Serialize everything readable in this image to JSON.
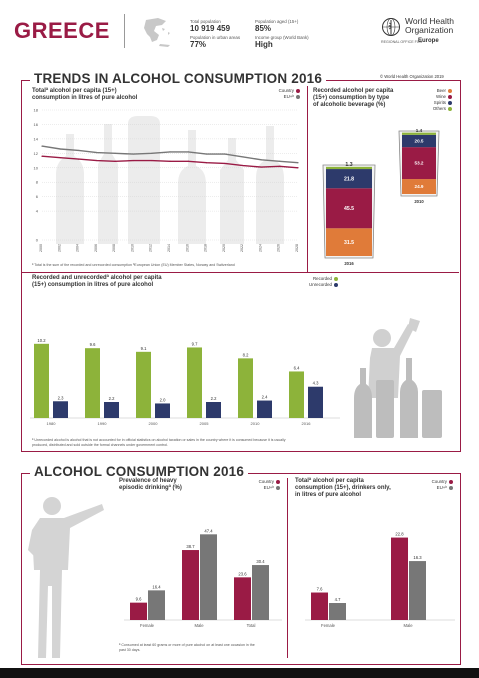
{
  "header": {
    "country": "GREECE",
    "stats": [
      {
        "label": "Total population",
        "value": "10 919 459"
      },
      {
        "label": "Population aged (15+)",
        "value": "85%"
      },
      {
        "label": "Population in urban areas",
        "value": "77%"
      },
      {
        "label": "Income group (World Bank)",
        "value": "High"
      }
    ],
    "who": {
      "line1": "World Health",
      "line2": "Organization",
      "line3": "Europe",
      "sub": "REGIONAL OFFICE FOR"
    }
  },
  "section1": {
    "title": "TRENDS IN ALCOHOL CONSUMPTION 2016",
    "copyright": "© World Health Organization 2019"
  },
  "trend": {
    "title_line1": "Totalª alcohol per capita (15+)",
    "title_line2": "consumption in litres of pure alcohol",
    "legend": [
      "Country",
      "EU+ᵇ"
    ],
    "footnote": "ª Total is the sum of the recorded and unrecorded consumption  ᵇEuropean Union (EU) Member States, Norway and Switzerland",
    "colors": {
      "country": "#9a1b45",
      "eu": "#777777"
    }
  },
  "beverage": {
    "title_line1": "Recorded alcohol per capita",
    "title_line2": "(15+) consumption by type",
    "title_line3": "of alcoholic beverage (%)",
    "legend": [
      {
        "name": "Beer",
        "color": "#e07b39"
      },
      {
        "name": "Wine",
        "color": "#9a1b45"
      },
      {
        "name": "Spirits",
        "color": "#2d3a6b"
      },
      {
        "name": "Others",
        "color": "#8db33a"
      }
    ],
    "year_left": "2016",
    "year_right": "2010"
  },
  "recorded": {
    "title_line1": "Recorded and unrecordedª alcohol per capita",
    "title_line2": "(15+) consumption in litres of pure alcohol",
    "legend": [
      "Recorded",
      "Unrecorded"
    ],
    "footnote_line1": "ª Unrecorded alcohol is alcohol that is not accounted for in official statistics on alcohol taxation or sales in the country where it is consumed because it is usually",
    "footnote_line2": "produced, distributed and sold outside the formal channels under government control."
  },
  "section2": {
    "title": "ALCOHOL CONSUMPTION 2016"
  },
  "hed": {
    "title_line1": "Prevalence of heavy",
    "title_line2": "episodic drinkingª (%)",
    "legend": [
      "Country",
      "EU+ᵇ"
    ],
    "footnote_line1": "ª Consumed at least 60 grams or more of pure alcohol on at least one occasion in the",
    "footnote_line2": "past 30 days."
  },
  "drinkers": {
    "title_line1": "Totalª alcohol per capita",
    "title_line2": "consumption (15+), drinkers only,",
    "title_line3": "in litres of pure alcohol",
    "legend": [
      "Country",
      "EU+ᵇ"
    ]
  },
  "chart_data": [
    {
      "type": "line",
      "x": [
        "2000",
        "2002",
        "2004",
        "2006",
        "2008",
        "2010",
        "2012",
        "2014",
        "2016",
        "2018",
        "2020",
        "2022",
        "2024",
        "2026",
        "2028"
      ],
      "series": [
        {
          "name": "Country",
          "values": [
            11.6,
            11.4,
            11.2,
            11.0,
            10.9,
            11.0,
            11.0,
            10.9,
            10.9,
            10.7,
            10.6,
            10.3,
            10.1,
            10.2,
            10.0
          ]
        },
        {
          "name": "EU+",
          "values": [
            13.0,
            12.6,
            12.4,
            12.1,
            12.0,
            11.9,
            12.0,
            12.2,
            12.2,
            11.9,
            11.9,
            11.5,
            11.1,
            10.9,
            10.7
          ]
        }
      ],
      "yticks": [
        "0",
        "4",
        "6",
        "8",
        "10",
        "12",
        "14",
        "16",
        "18"
      ],
      "ylim": [
        0,
        18
      ]
    },
    {
      "type": "bar",
      "categories": [
        "2016",
        "2010"
      ],
      "series": [
        {
          "name": "Beer",
          "values": [
            31.5,
            24.9
          ]
        },
        {
          "name": "Wine",
          "values": [
            45.5,
            53.2
          ]
        },
        {
          "name": "Spirits",
          "values": [
            21.8,
            20.5
          ]
        },
        {
          "name": "Others",
          "values": [
            1.3,
            1.4
          ]
        }
      ]
    },
    {
      "type": "bar",
      "categories": [
        "1980",
        "1990",
        "2000",
        "2005",
        "2010",
        "2016"
      ],
      "series": [
        {
          "name": "Recorded",
          "values": [
            10.2,
            9.6,
            9.1,
            9.7,
            8.2,
            6.4
          ]
        },
        {
          "name": "Unrecorded",
          "values": [
            2.3,
            2.2,
            2.0,
            2.2,
            2.4,
            4.3
          ]
        }
      ],
      "labels": [
        [
          "10.2",
          "2.3"
        ],
        [
          "9.6",
          "2.2"
        ],
        [
          "9.1",
          "2.0"
        ],
        [
          "9.7",
          "2.2"
        ],
        [
          "8.2",
          "2.4"
        ],
        [
          "6.4",
          "4.3"
        ]
      ]
    },
    {
      "type": "bar",
      "categories": [
        "Female",
        "Male",
        "Total"
      ],
      "series": [
        {
          "name": "Country",
          "values": [
            9.6,
            38.7,
            23.6
          ]
        },
        {
          "name": "EU+",
          "values": [
            16.4,
            47.4,
            30.4
          ]
        }
      ]
    },
    {
      "type": "bar",
      "categories": [
        "Female",
        "Male"
      ],
      "series": [
        {
          "name": "Country",
          "values": [
            7.6,
            22.8
          ]
        },
        {
          "name": "EU+",
          "values": [
            4.7,
            16.3
          ]
        }
      ]
    }
  ]
}
